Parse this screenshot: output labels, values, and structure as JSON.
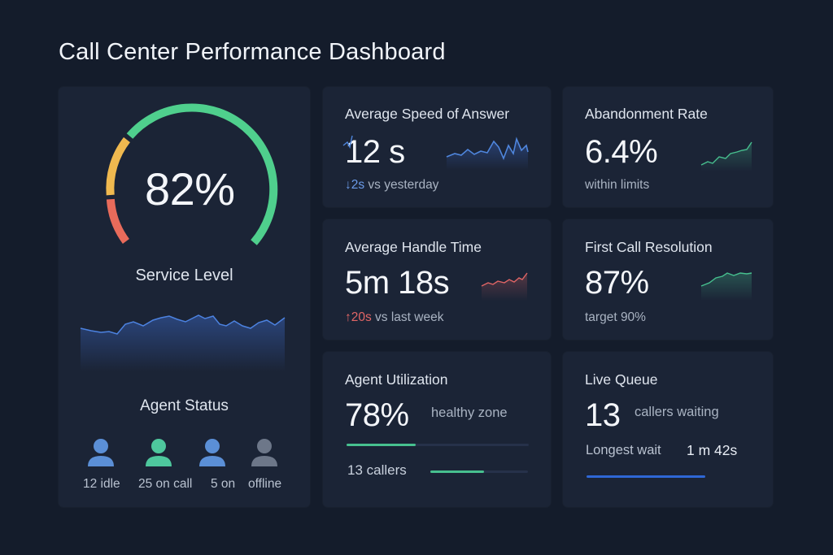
{
  "dashboard_title": "Call Center Performance Dashboard",
  "service_level": {
    "value": "82%",
    "label": "Service Level",
    "gauge_fraction": 0.82,
    "colors": {
      "red": "#e86b5b",
      "amber": "#f0b94f",
      "green": "#4fcf8d"
    }
  },
  "agent_status": {
    "title": "Agent Status",
    "items": [
      {
        "label": "12 idle",
        "color": "#5b8fd6",
        "icon": "user-icon"
      },
      {
        "label": "25 on call",
        "color": "#4ec79d",
        "icon": "user-icon"
      },
      {
        "label": "5 on",
        "color": "#5b8fd6",
        "icon": "user-icon"
      },
      {
        "label": "offline",
        "color": "#6d7789",
        "icon": "user-icon"
      }
    ]
  },
  "metrics": {
    "asa": {
      "title": "Average Speed of Answer",
      "value": "12 s",
      "arrow": "↓",
      "change": "2s",
      "change_suffix": " vs yesterday"
    },
    "abandon": {
      "title": "Abandonment Rate",
      "value": "6.4%",
      "note": "within limits"
    },
    "aht": {
      "title": "Average Handle Time",
      "value": "5m 18s",
      "arrow": "↑",
      "change": "20s",
      "change_suffix": " vs last week"
    },
    "fcr": {
      "title": "First Call Resolution",
      "value": "87%",
      "note": "target 90%"
    },
    "util": {
      "title": "Agent Utilization",
      "value": "78%",
      "note": "healthy zone",
      "callers": "13 callers",
      "fraction": 0.78
    },
    "queue": {
      "title": "Live Queue",
      "value": "13",
      "note": "callers waiting",
      "longest_label": "Longest wait",
      "longest_value": "1 m 42s"
    }
  },
  "colors": {
    "accent_blue": "#4f86dd",
    "accent_green": "#47c08f",
    "accent_red": "#e06565",
    "card": "#1b2436",
    "background": "#141c2b"
  }
}
